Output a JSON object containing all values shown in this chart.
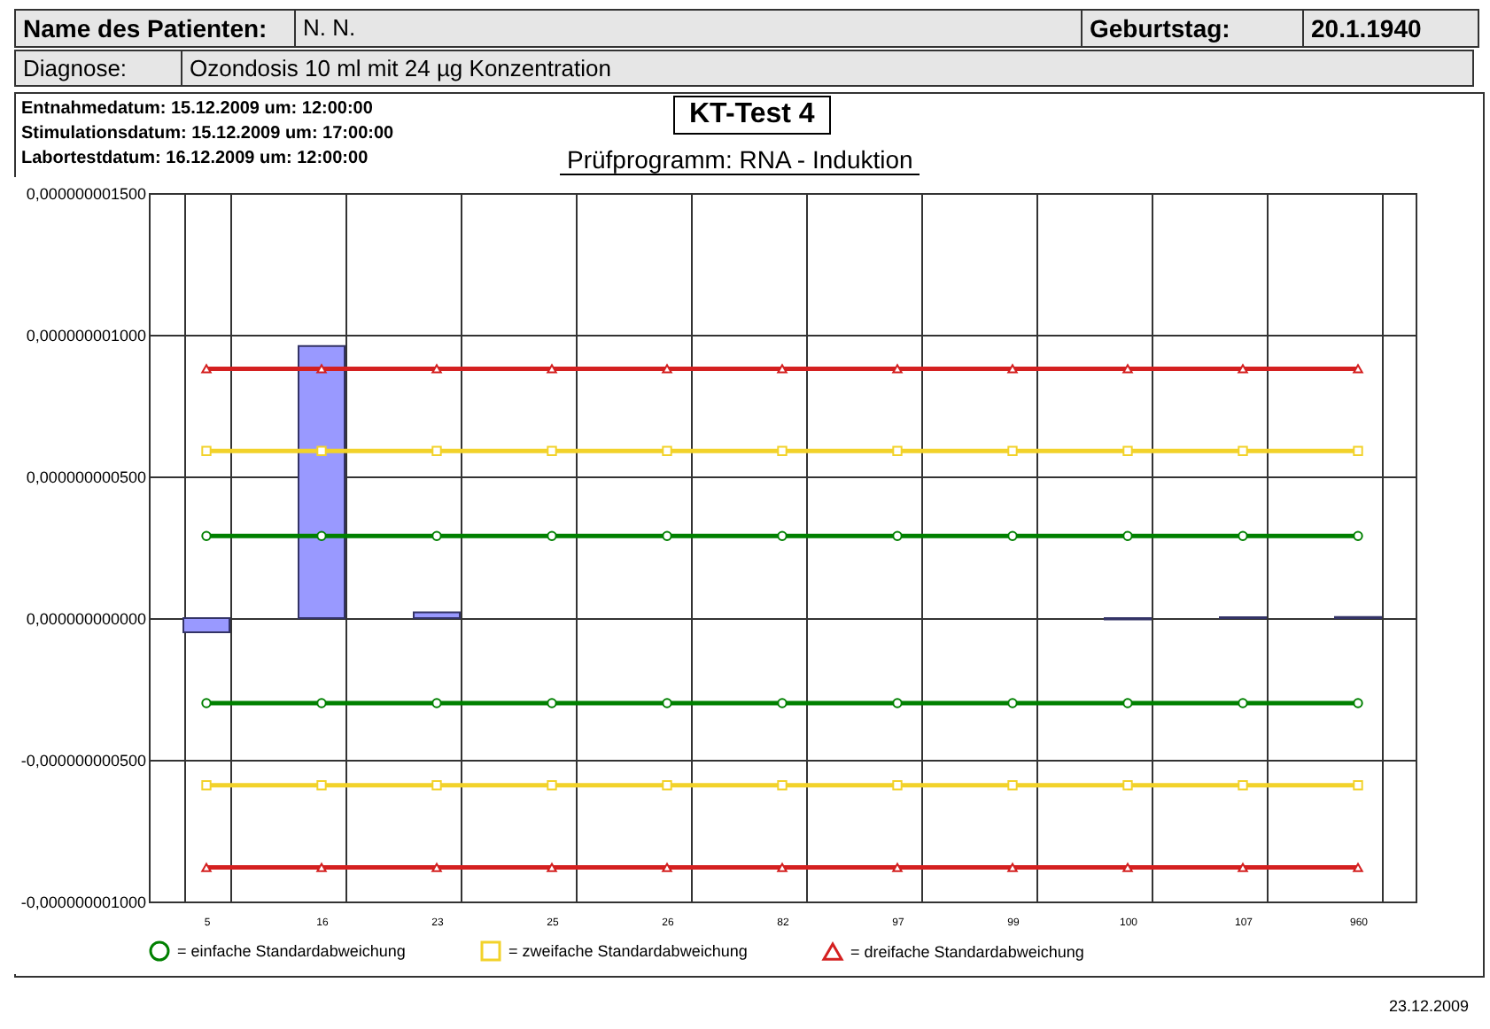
{
  "chart_data": {
    "type": "bar",
    "title": "KT-Test 4",
    "subtitle": "Prüfprogramm: RNA - Induktion",
    "annotations": [
      "Name des Patienten:",
      "N. N.",
      "Geburtstag:",
      "20.1.1940",
      "Diagnose:",
      "Ozondosis 10 ml mit 24 µg Konzentration",
      "Entnahmedatum: 15.12.2009 um: 12:00:00",
      "Stimulationsdatum: 15.12.2009 um: 17:00:00",
      "Labortestdatum: 16.12.2009 um: 12:00:00",
      "23.12.2009"
    ],
    "categories": [
      "5",
      "16",
      "23",
      "25",
      "26",
      "82",
      "97",
      "99",
      "100",
      "107",
      "960"
    ],
    "series": [
      {
        "color": "#9999ff",
        "values": [
          -5e-11,
          9.6e-10,
          2e-11,
          null,
          null,
          null,
          null,
          null,
          -5e-12,
          3e-12,
          4e-12
        ]
      },
      {
        "type": "line",
        "name": "= einfache Standardabweichung",
        "color": "#008000",
        "marker": "circle",
        "values": [
          2.9e-10,
          2.9e-10,
          2.9e-10,
          2.9e-10,
          2.9e-10,
          2.9e-10,
          2.9e-10,
          2.9e-10,
          2.9e-10,
          2.9e-10,
          2.9e-10
        ]
      },
      {
        "type": "line",
        "name": "= zweifache Standardabweichung",
        "color": "#f2d22a",
        "marker": "square",
        "values": [
          5.9e-10,
          5.9e-10,
          5.9e-10,
          5.9e-10,
          5.9e-10,
          5.9e-10,
          5.9e-10,
          5.9e-10,
          5.9e-10,
          5.9e-10,
          5.9e-10
        ]
      },
      {
        "type": "line",
        "name": "= dreifache Standardabweichung",
        "color": "#d42020",
        "marker": "triangle",
        "values": [
          8.8e-10,
          8.8e-10,
          8.8e-10,
          8.8e-10,
          8.8e-10,
          8.8e-10,
          8.8e-10,
          8.8e-10,
          8.8e-10,
          8.8e-10,
          8.8e-10
        ]
      },
      {
        "type": "line",
        "color": "#008000",
        "marker": "circle",
        "values": [
          -3e-10,
          -3e-10,
          -3e-10,
          -3e-10,
          -3e-10,
          -3e-10,
          -3e-10,
          -3e-10,
          -3e-10,
          -3e-10,
          -3e-10
        ]
      },
      {
        "type": "line",
        "color": "#f2d22a",
        "marker": "square",
        "values": [
          -5.9e-10,
          -5.9e-10,
          -5.9e-10,
          -5.9e-10,
          -5.9e-10,
          -5.9e-10,
          -5.9e-10,
          -5.9e-10,
          -5.9e-10,
          -5.9e-10,
          -5.9e-10
        ]
      },
      {
        "type": "line",
        "color": "#d42020",
        "marker": "triangle",
        "values": [
          -8.8e-10,
          -8.8e-10,
          -8.8e-10,
          -8.8e-10,
          -8.8e-10,
          -8.8e-10,
          -8.8e-10,
          -8.8e-10,
          -8.8e-10,
          -8.8e-10,
          -8.8e-10
        ]
      }
    ],
    "ylim": [
      -1e-09,
      1.5e-09
    ],
    "yticks": [
      {
        "value": -1e-09,
        "label": "-0,000000001000"
      },
      {
        "value": -5e-10,
        "label": "-0,000000000500"
      },
      {
        "value": 0,
        "label": "0,000000000000"
      },
      {
        "value": 5e-10,
        "label": "0,000000000500"
      },
      {
        "value": 1e-09,
        "label": "0,000000001000"
      },
      {
        "value": 1.5e-09,
        "label": "0,000000001500"
      }
    ],
    "grid": true,
    "legend": "bottom",
    "line_style": "solid"
  }
}
